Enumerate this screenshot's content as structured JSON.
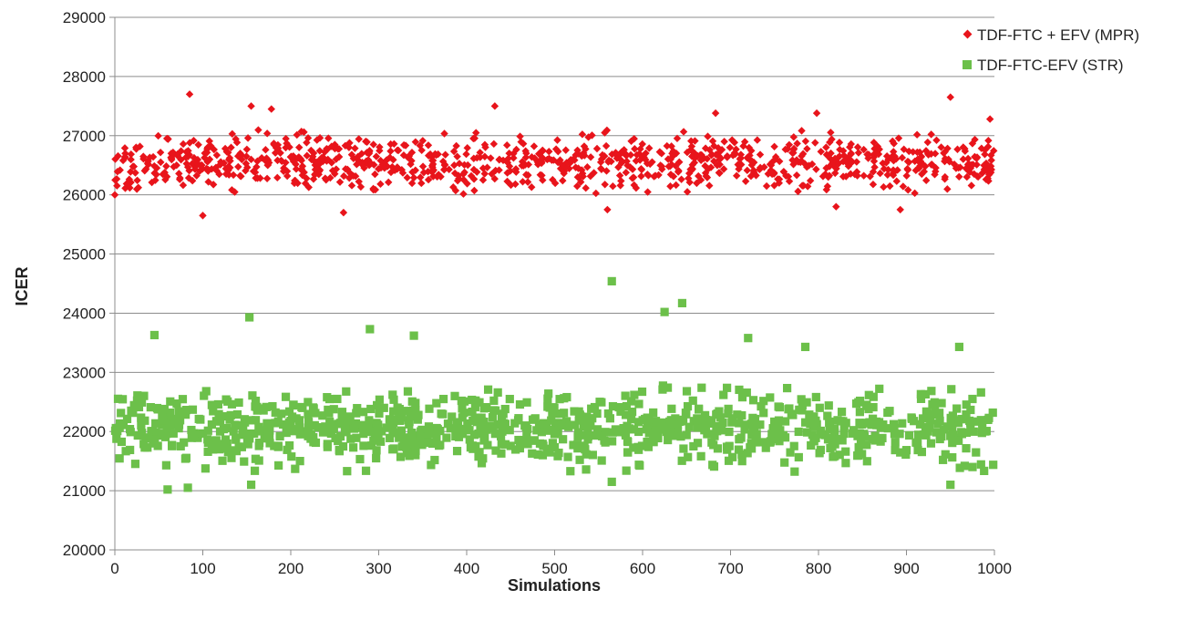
{
  "chart_data": {
    "type": "scatter",
    "title": "",
    "xlabel": "Simulations",
    "ylabel": "ICER",
    "xlim": [
      0,
      1000
    ],
    "ylim": [
      20000,
      29000
    ],
    "x_ticks": [
      0,
      100,
      200,
      300,
      400,
      500,
      600,
      700,
      800,
      900,
      1000
    ],
    "y_ticks": [
      20000,
      21000,
      22000,
      23000,
      24000,
      25000,
      26000,
      27000,
      28000,
      29000
    ],
    "grid": "horizontal",
    "legend_position": "top-right",
    "n_points_per_series": 1000,
    "series": [
      {
        "name": "TDF-FTC + EFV (MPR)",
        "marker": "diamond",
        "color": "#e8141b",
        "center": 26550,
        "spread": 360,
        "outliers": [
          [
            0,
            26000
          ],
          [
            85,
            27700
          ],
          [
            100,
            25650
          ],
          [
            155,
            27500
          ],
          [
            178,
            27450
          ],
          [
            260,
            25700
          ],
          [
            432,
            27500
          ],
          [
            560,
            25750
          ],
          [
            683,
            27380
          ],
          [
            798,
            27380
          ],
          [
            820,
            25800
          ],
          [
            893,
            25750
          ],
          [
            950,
            27650
          ],
          [
            995,
            27280
          ]
        ]
      },
      {
        "name": "TDF-FTC-EFV (STR)",
        "marker": "square",
        "color": "#6cc04a",
        "center": 22050,
        "spread": 470,
        "outliers": [
          [
            45,
            23630
          ],
          [
            60,
            21020
          ],
          [
            83,
            21050
          ],
          [
            153,
            23930
          ],
          [
            155,
            21100
          ],
          [
            290,
            23730
          ],
          [
            340,
            23620
          ],
          [
            565,
            24540
          ],
          [
            565,
            21150
          ],
          [
            625,
            24020
          ],
          [
            645,
            24170
          ],
          [
            720,
            23580
          ],
          [
            785,
            23430
          ],
          [
            950,
            21100
          ],
          [
            960,
            23430
          ]
        ]
      }
    ]
  }
}
